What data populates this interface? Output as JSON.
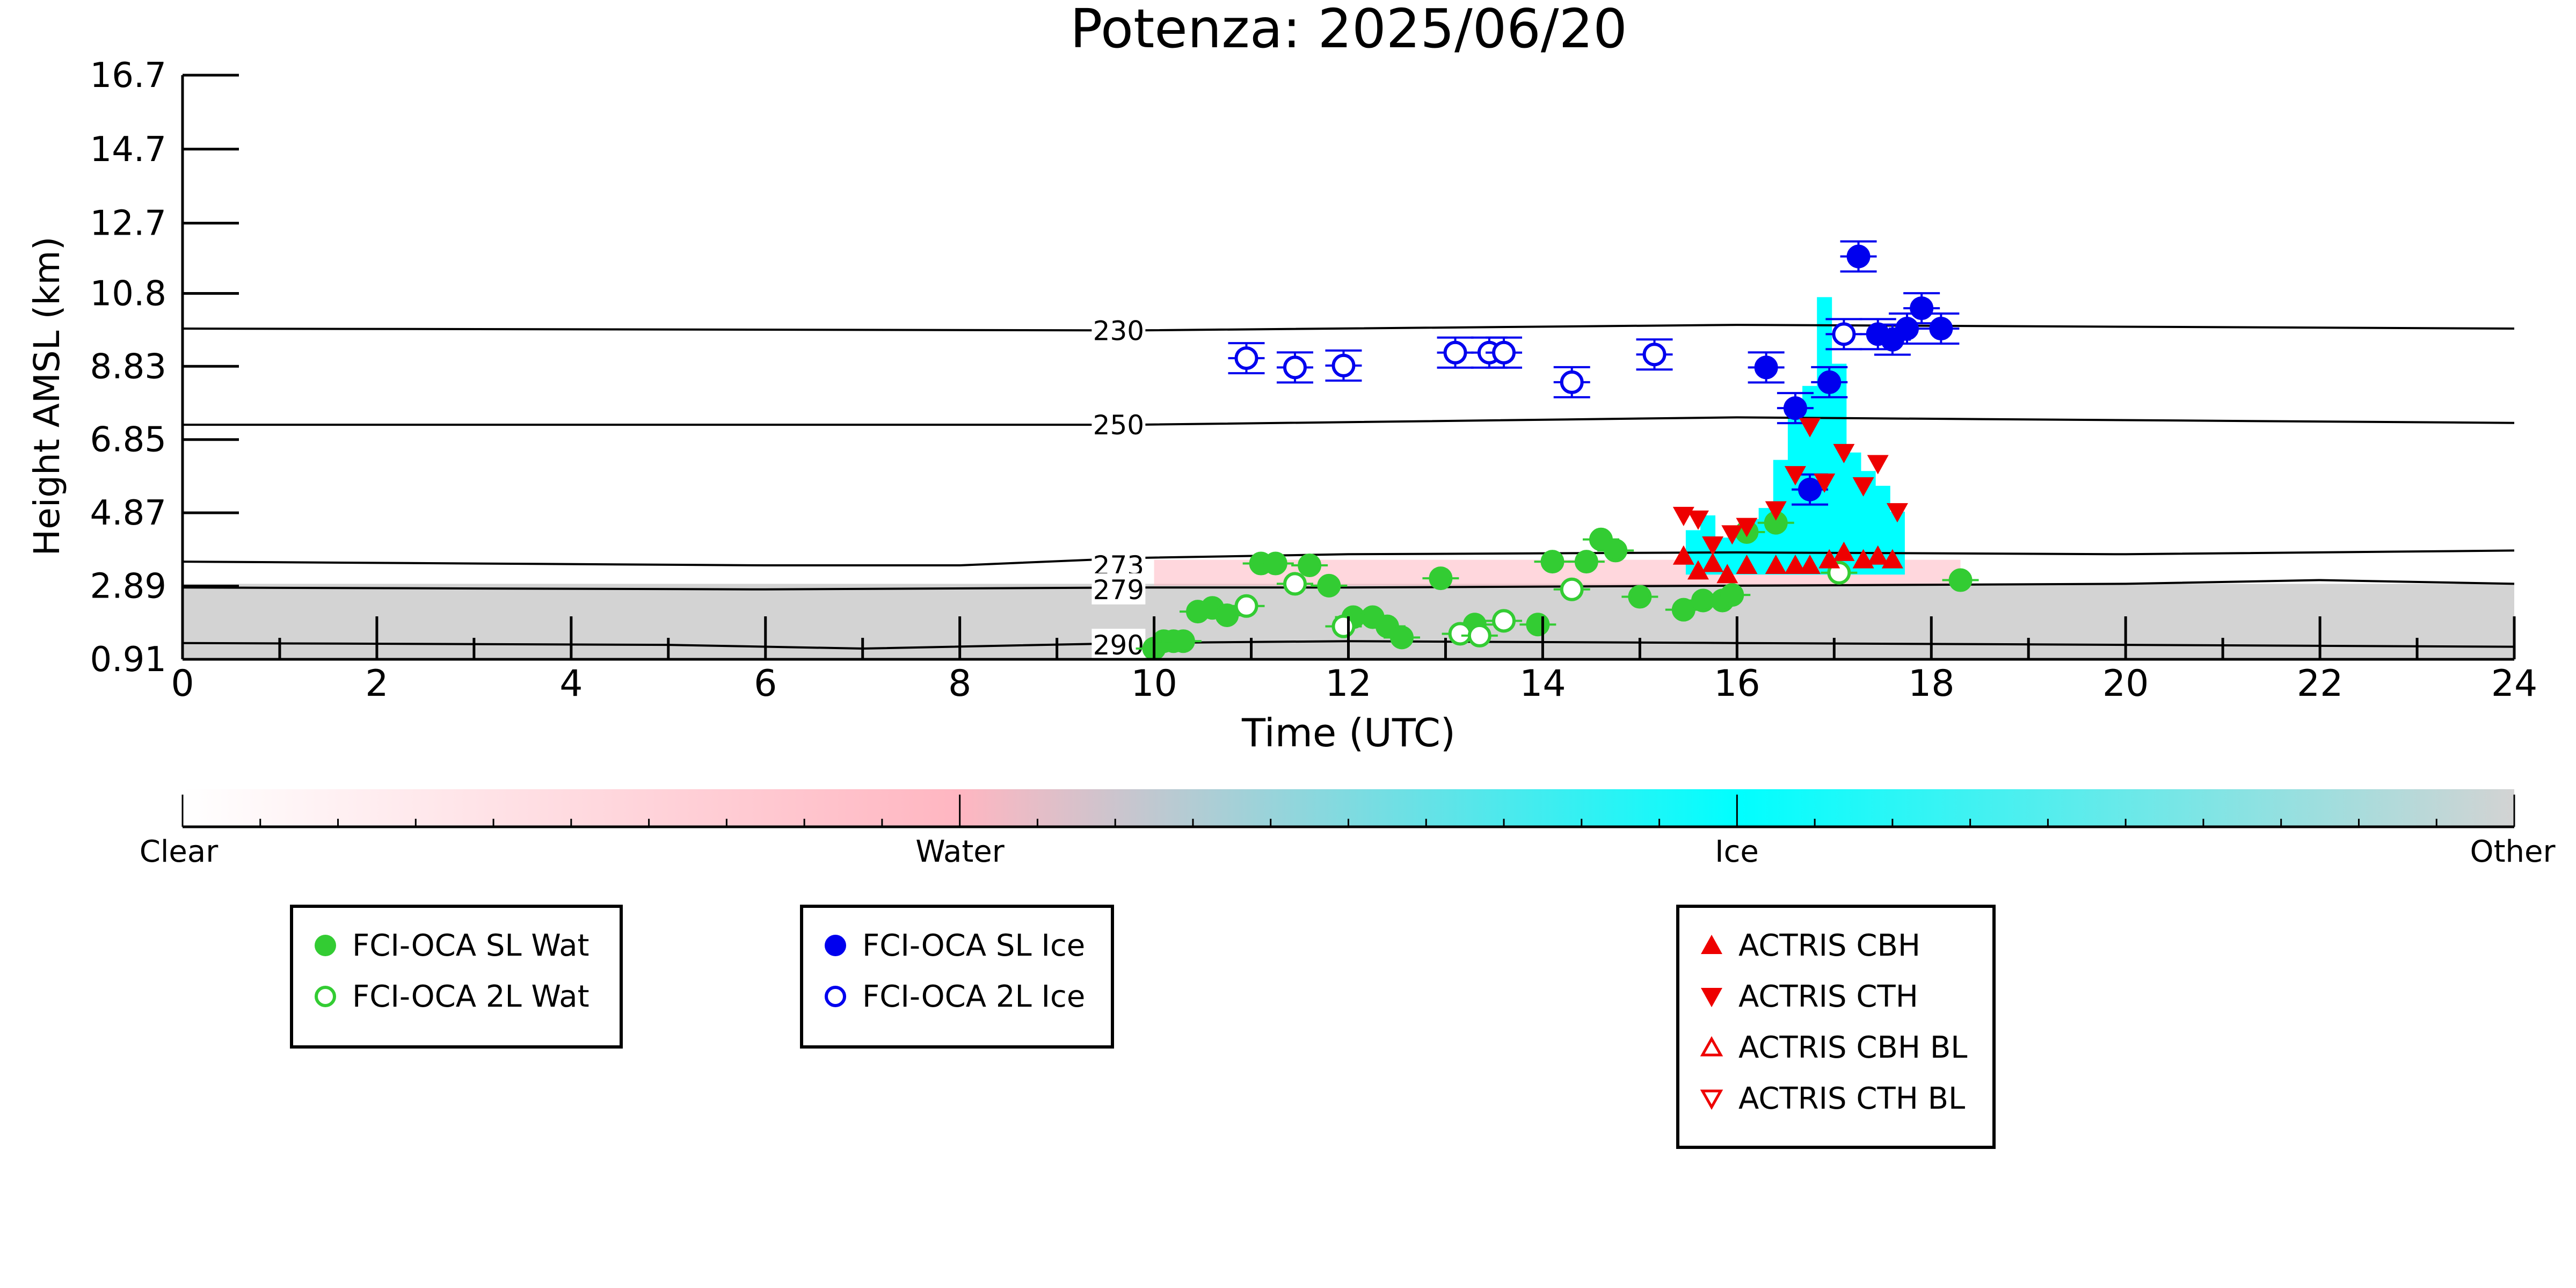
{
  "chart_data": {
    "type": "scatter",
    "title": "Potenza: 2025/06/20",
    "xlabel": "Time (UTC)",
    "ylabel": "Height AMSL (km)",
    "xlim": [
      0,
      24
    ],
    "ylim": [
      0.91,
      16.7
    ],
    "x_ticks": [
      "0",
      "2",
      "4",
      "6",
      "8",
      "10",
      "12",
      "14",
      "16",
      "18",
      "20",
      "22",
      "24"
    ],
    "y_ticks": [
      "0.91",
      "2.89",
      "4.87",
      "6.85",
      "8.83",
      "10.8",
      "12.7",
      "14.7",
      "16.7"
    ],
    "y_tick_values": [
      0.91,
      2.89,
      4.87,
      6.85,
      8.83,
      10.8,
      12.7,
      14.7,
      16.7
    ],
    "colors": {
      "water_marker": "#33cc33",
      "ice_marker": "#0000ee",
      "actris": "#ee0000",
      "clear": "#ffffff",
      "water": "#ffb6c1",
      "ice": "#00ffff",
      "other": "#d3d3d3"
    },
    "isotherms": [
      {
        "label": "230",
        "x": [
          0,
          9.8,
          16,
          24
        ],
        "y": [
          9.85,
          9.8,
          9.95,
          9.85
        ]
      },
      {
        "label": "250",
        "x": [
          0,
          9.8,
          16,
          24
        ],
        "y": [
          7.25,
          7.25,
          7.45,
          7.3
        ]
      },
      {
        "label": "273",
        "x": [
          0,
          6,
          8,
          9.8,
          12,
          16,
          20,
          24
        ],
        "y": [
          3.55,
          3.45,
          3.45,
          3.65,
          3.75,
          3.8,
          3.75,
          3.85
        ]
      },
      {
        "label": "279",
        "x": [
          0,
          6,
          9.8,
          12,
          16,
          20,
          22,
          24
        ],
        "y": [
          2.85,
          2.8,
          2.85,
          2.85,
          2.9,
          2.95,
          3.05,
          2.95
        ]
      },
      {
        "label": "290",
        "x": [
          0,
          5,
          7,
          9.8,
          12,
          16,
          20,
          24
        ],
        "y": [
          1.35,
          1.3,
          1.2,
          1.35,
          1.4,
          1.35,
          1.3,
          1.25
        ]
      }
    ],
    "series": [
      {
        "name": "FCI-OCA SL Wat",
        "x": [
          10.0,
          10.1,
          10.2,
          10.3,
          10.45,
          10.6,
          10.75,
          11.1,
          11.25,
          11.6,
          11.8,
          12.05,
          12.25,
          12.4,
          12.55,
          12.95,
          13.3,
          13.95,
          14.1,
          14.45,
          14.6,
          14.75,
          15.0,
          15.45,
          15.65,
          15.85,
          15.95,
          16.1,
          16.4,
          18.3
        ],
        "y": [
          1.2,
          1.4,
          1.4,
          1.4,
          2.2,
          2.3,
          2.1,
          3.5,
          3.5,
          3.45,
          2.9,
          2.05,
          2.05,
          1.8,
          1.5,
          3.1,
          1.85,
          1.85,
          3.55,
          3.55,
          4.15,
          3.85,
          2.6,
          2.25,
          2.5,
          2.5,
          2.65,
          4.35,
          4.6,
          3.05
        ]
      },
      {
        "name": "FCI-OCA 2L Wat",
        "x": [
          10.95,
          11.45,
          11.95,
          13.15,
          13.35,
          13.6,
          14.3,
          17.05
        ],
        "y": [
          2.35,
          2.95,
          1.8,
          1.6,
          1.55,
          1.95,
          2.8,
          3.25
        ]
      },
      {
        "name": "FCI-OCA SL Ice",
        "x": [
          16.3,
          16.6,
          16.75,
          16.95,
          17.25,
          17.45,
          17.6,
          17.75,
          17.9,
          18.1
        ],
        "y": [
          8.8,
          7.7,
          5.5,
          8.4,
          11.8,
          9.7,
          9.55,
          9.85,
          10.4,
          9.85
        ]
      },
      {
        "name": "FCI-OCA 2L Ice",
        "x": [
          10.95,
          11.45,
          11.95,
          13.1,
          13.45,
          13.6,
          14.3,
          15.15,
          17.1
        ],
        "y": [
          9.05,
          8.8,
          8.85,
          9.2,
          9.2,
          9.2,
          8.4,
          9.15,
          9.7
        ]
      },
      {
        "name": "ACTRIS CBH",
        "x": [
          15.45,
          15.6,
          15.75,
          15.9,
          16.1,
          16.4,
          16.6,
          16.75,
          16.95,
          17.1,
          17.3,
          17.45,
          17.6
        ],
        "y": [
          3.7,
          3.3,
          3.5,
          3.2,
          3.45,
          3.45,
          3.45,
          3.45,
          3.6,
          3.8,
          3.6,
          3.7,
          3.6
        ]
      },
      {
        "name": "ACTRIS CTH",
        "x": [
          15.45,
          15.6,
          15.75,
          15.95,
          16.1,
          16.4,
          16.6,
          16.75,
          16.9,
          17.1,
          17.3,
          17.45,
          17.65
        ],
        "y": [
          4.8,
          4.7,
          4.0,
          4.3,
          4.5,
          4.95,
          5.9,
          7.2,
          5.7,
          6.5,
          5.6,
          6.2,
          4.9
        ]
      },
      {
        "name": "ACTRIS CBH BL",
        "x": [],
        "y": []
      },
      {
        "name": "ACTRIS CTH BL",
        "x": [],
        "y": []
      }
    ],
    "colorbar": {
      "labels": [
        "Clear",
        "Water",
        "Ice",
        "Other"
      ]
    },
    "legends": [
      {
        "entries": [
          "FCI-OCA SL Wat",
          "FCI-OCA 2L Wat"
        ]
      },
      {
        "entries": [
          "FCI-OCA SL Ice",
          "FCI-OCA 2L Ice"
        ]
      },
      {
        "entries": [
          "ACTRIS CBH",
          "ACTRIS CTH",
          "ACTRIS CBH BL",
          "ACTRIS CTH BL"
        ]
      }
    ]
  }
}
